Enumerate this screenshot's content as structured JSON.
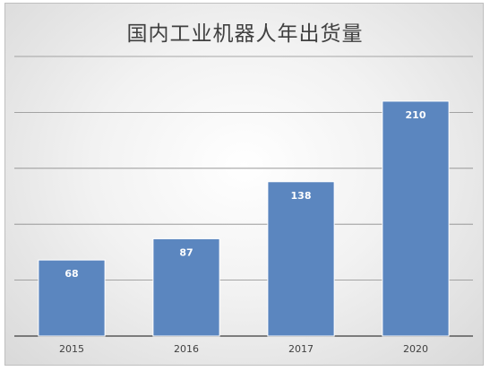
{
  "chart_data": {
    "type": "bar",
    "title": "国内工业机器人年出货量",
    "categories": [
      "2015",
      "2016",
      "2017",
      "2020"
    ],
    "values": [
      68,
      87,
      138,
      210
    ],
    "ylim": [
      0,
      250
    ],
    "grid": true,
    "legend": "none",
    "colors": {
      "bar": "#5b86bf",
      "bar_border": "#ffffff",
      "grid": "#8c8c8c",
      "axis": "#595959"
    }
  }
}
